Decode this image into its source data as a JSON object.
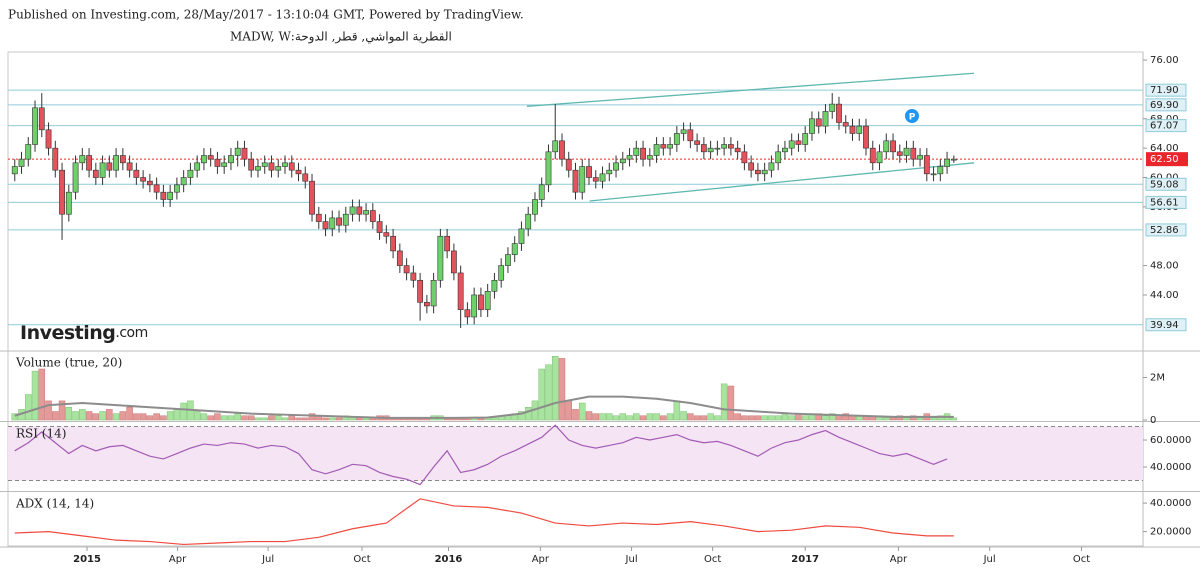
{
  "header": {
    "published": "Published on Investing.com, 28/May/2017 - 13:10:04 GMT, Powered by TradingView.",
    "symbol": "القطرية المواشي, قطر, الدوحة:MADW, W"
  },
  "chart_data": [
    {
      "type": "candlestick",
      "open": [
        60.5,
        61.5,
        62.5,
        64.5,
        69.5,
        66.5,
        64,
        61,
        55,
        58,
        62,
        63,
        61,
        60,
        62,
        61,
        63,
        62,
        61,
        60,
        59.5,
        59,
        58,
        57,
        58,
        59,
        60,
        61,
        62,
        63,
        62.5,
        61.5,
        62,
        63,
        64,
        62.5,
        61,
        61.5,
        62,
        61,
        61.5,
        62,
        61,
        60.5,
        59.5,
        55,
        54,
        53,
        54.5,
        53.5,
        55,
        56,
        55,
        55.5,
        54,
        52.5,
        52,
        50,
        48,
        47,
        46,
        43,
        42.5,
        46,
        52,
        50,
        47,
        42,
        41,
        44,
        42,
        44.5,
        46,
        48,
        49.5,
        51,
        53,
        55,
        57,
        59,
        63.5,
        65,
        62.5,
        61,
        58,
        61.5,
        60,
        59.5,
        60.5,
        61,
        62,
        62.5,
        63,
        64,
        62.5,
        63,
        64.5,
        64,
        64.5,
        66,
        66.5,
        65,
        64.5,
        63.5,
        64,
        64,
        64.5,
        64,
        63.5,
        62,
        61,
        60.5,
        61,
        62,
        63.5,
        64,
        65,
        64.5,
        66,
        68,
        67,
        69,
        70,
        67.5,
        67,
        66,
        67,
        64,
        62,
        63.5,
        65,
        63.5,
        63,
        64,
        62.5,
        63,
        60.5,
        60.5,
        61.5,
        62.5
      ],
      "high": [
        62.5,
        63.5,
        65.5,
        70.5,
        71.5,
        67.5,
        65,
        62,
        59,
        63,
        64,
        64,
        62,
        63,
        63,
        64,
        64,
        63,
        62,
        61,
        60.5,
        60,
        59,
        59,
        60,
        61,
        62,
        63,
        64,
        64,
        63.5,
        63,
        64,
        65,
        65,
        63.5,
        62.5,
        63,
        63,
        62.5,
        63,
        63,
        62,
        61.5,
        60.5,
        56,
        55,
        55.5,
        55.5,
        56,
        57,
        57,
        56.5,
        56.5,
        55,
        53.5,
        53,
        51,
        49,
        48,
        47,
        44,
        47,
        53,
        53,
        51,
        48,
        43,
        45,
        45,
        45.5,
        47,
        49,
        50.5,
        52,
        54,
        56,
        58,
        60,
        64.5,
        70,
        66,
        63.5,
        62,
        62.5,
        62.5,
        61,
        61.5,
        62,
        63,
        63.5,
        64,
        65,
        65,
        64,
        65.5,
        65.5,
        65.5,
        67,
        67.5,
        67.5,
        66,
        65.5,
        65,
        65,
        65.5,
        65.5,
        65,
        64.5,
        63,
        62,
        62,
        63,
        64.5,
        65,
        66,
        66,
        67,
        69,
        69,
        70,
        71.5,
        71,
        68.5,
        68,
        68,
        68,
        65,
        64.5,
        66,
        66,
        64.5,
        65,
        65,
        64,
        64,
        61.5,
        62.5,
        63.5,
        63
      ],
      "low": [
        59.5,
        60.5,
        61.5,
        63.5,
        65.5,
        63,
        60,
        51.5,
        54,
        57,
        61,
        60,
        59,
        59,
        60,
        60,
        61,
        60,
        59,
        58.5,
        58,
        57,
        56,
        56,
        57,
        58,
        59,
        60,
        61,
        61.5,
        60.5,
        60.5,
        61,
        61.5,
        61.5,
        60,
        60,
        60.5,
        60,
        60,
        60.5,
        60,
        59.5,
        58.5,
        54,
        53,
        52,
        52,
        52.5,
        52.5,
        54,
        54,
        54,
        53,
        51.5,
        51,
        49,
        47,
        46,
        45,
        40.5,
        41.5,
        41.5,
        45,
        49,
        46,
        39.5,
        40,
        40,
        41,
        41,
        43.5,
        45,
        47,
        48.5,
        50,
        52,
        54,
        56,
        58,
        62.5,
        61.5,
        60,
        57,
        57,
        59,
        58.5,
        58.5,
        59.5,
        60,
        61,
        61.5,
        62,
        61.5,
        61.5,
        62,
        63,
        63,
        63.5,
        65,
        64,
        63.5,
        62.5,
        62.5,
        63,
        63,
        63,
        62.5,
        61,
        60,
        59.5,
        59.5,
        60,
        61,
        62.5,
        63,
        63.5,
        63.5,
        65,
        66,
        66,
        68,
        66.5,
        66,
        65,
        65,
        63,
        61,
        61,
        62.5,
        62.5,
        62,
        62,
        61.5,
        61.5,
        59.5,
        59.5,
        59.5,
        60.5,
        62
      ],
      "close": [
        61.5,
        62.5,
        64.5,
        69.5,
        66.5,
        64,
        61,
        55,
        58,
        62,
        63,
        61,
        60,
        62,
        61,
        63,
        62,
        61,
        60,
        59.5,
        59,
        58,
        57,
        58,
        59,
        60,
        61,
        62,
        63,
        62.5,
        61.5,
        62,
        63,
        64,
        62.5,
        61,
        61.5,
        62,
        61,
        61.5,
        62,
        61,
        60.5,
        59.5,
        55,
        54,
        53,
        54.5,
        53.5,
        55,
        56,
        55,
        55.5,
        54,
        52.5,
        52,
        50,
        48,
        47,
        46,
        43,
        42.5,
        46,
        52,
        50,
        47,
        42,
        41,
        44,
        42,
        44.5,
        46,
        48,
        49.5,
        51,
        53,
        55,
        57,
        59,
        63.5,
        65,
        62.5,
        61,
        58,
        61.5,
        60,
        59.5,
        60.5,
        61,
        62,
        62.5,
        63,
        64,
        62.5,
        63,
        64.5,
        64,
        64.5,
        66,
        66.5,
        65,
        64.5,
        63.5,
        64,
        64,
        64.5,
        64,
        63.5,
        62,
        61,
        60.5,
        61,
        62,
        63.5,
        64,
        65,
        64.5,
        66,
        68,
        67,
        69,
        70,
        67.5,
        67,
        66,
        67,
        64,
        62,
        63.5,
        65,
        63.5,
        63,
        64,
        62.5,
        63,
        60.5,
        60.5,
        61.5,
        62.5,
        62.5
      ],
      "up_color": "#6fd06a",
      "down_color": "#e2535c",
      "xlim": [
        -1,
        167
      ],
      "xticks": [
        {
          "value": 10.7,
          "label": "2015"
        },
        {
          "value": 24.1,
          "label": "Apr"
        },
        {
          "value": 37.5,
          "label": "Jul"
        },
        {
          "value": 51.4,
          "label": "Oct"
        },
        {
          "value": 64.2,
          "label": "2016"
        },
        {
          "value": 77.8,
          "label": "Apr"
        },
        {
          "value": 91.3,
          "label": "Jul"
        },
        {
          "value": 103.3,
          "label": "Oct"
        },
        {
          "value": 117,
          "label": "2017"
        },
        {
          "value": 130.8,
          "label": "Apr"
        },
        {
          "value": 144.3,
          "label": "Jul"
        },
        {
          "value": 157.9,
          "label": "Oct"
        }
      ],
      "ylim": [
        36.5,
        77.1
      ],
      "yticks": [
        {
          "value": 76,
          "label": "76.00"
        },
        {
          "value": 68,
          "label": "68.00"
        },
        {
          "value": 64,
          "label": "64.00"
        },
        {
          "value": 60,
          "label": "60.00"
        },
        {
          "value": 56,
          "label": "56.00"
        },
        {
          "value": 48,
          "label": "48.00"
        },
        {
          "value": 44,
          "label": "44.00"
        }
      ],
      "levels": [
        {
          "value": 71.9,
          "label": "71.90"
        },
        {
          "value": 69.9,
          "label": "69.90"
        },
        {
          "value": 67.07,
          "label": "67.07"
        },
        {
          "value": 59.08,
          "label": "59.08"
        },
        {
          "value": 56.61,
          "label": "56.61"
        },
        {
          "value": 52.86,
          "label": "52.86"
        },
        {
          "value": 39.94,
          "label": "39.94"
        }
      ],
      "level_color": "#8fcbd9",
      "last": {
        "value": 62.5,
        "label": "62.50"
      },
      "last_color": "#e8262b",
      "trendlines": [
        {
          "x": [
            75.8,
            142
          ],
          "y": [
            69.7,
            74.2
          ]
        },
        {
          "x": [
            85.1,
            142
          ],
          "y": [
            56.8,
            62.0
          ]
        }
      ],
      "trend_color": "#5fb8b0",
      "logo": {
        "name": "Investing",
        "suffix": ".com"
      }
    },
    {
      "type": "bar",
      "title": "Volume (true, 20)",
      "values": [
        0.3,
        0.5,
        1.2,
        2.3,
        2.4,
        0.9,
        0.4,
        0.9,
        0.6,
        0.4,
        0.5,
        0.4,
        0.3,
        0.4,
        0.5,
        0.3,
        0.4,
        0.6,
        0.3,
        0.3,
        0.2,
        0.3,
        0.2,
        0.4,
        0.5,
        0.8,
        0.9,
        0.4,
        0.3,
        0.2,
        0.3,
        0.2,
        0.2,
        0.3,
        0.2,
        0.2,
        0.1,
        0.1,
        0.2,
        0.2,
        0.1,
        0.2,
        0.1,
        0.1,
        0.3,
        0.2,
        0.1,
        0.1,
        0.1,
        0.2,
        0.1,
        0.1,
        0.1,
        0.1,
        0.2,
        0.2,
        0.1,
        0.1,
        0.1,
        0.1,
        0.1,
        0.1,
        0.2,
        0.2,
        0.1,
        0.1,
        0.1,
        0.1,
        0.1,
        0.1,
        0.1,
        0.1,
        0.2,
        0.2,
        0.3,
        0.4,
        0.6,
        0.9,
        2.4,
        2.6,
        3.0,
        2.9,
        0.9,
        0.5,
        0.8,
        0.4,
        0.3,
        0.3,
        0.3,
        0.2,
        0.3,
        0.2,
        0.3,
        0.2,
        0.3,
        0.3,
        0.2,
        0.3,
        0.9,
        0.4,
        0.3,
        0.2,
        0.2,
        0.3,
        0.2,
        1.7,
        1.6,
        0.3,
        0.2,
        0.2,
        0.2,
        0.2,
        0.2,
        0.2,
        0.3,
        0.2,
        0.3,
        0.2,
        0.3,
        0.3,
        0.2,
        0.3,
        0.2,
        0.3,
        0.2,
        0.2,
        0.2,
        0.2,
        0.2,
        0.1,
        0.1,
        0.2,
        0.1,
        0.2,
        0.1,
        0.3,
        0.1,
        0.2,
        0.3,
        0.1
      ],
      "up_color": "#a9e3a0",
      "down_color": "#e59a9a",
      "ylim": [
        0,
        3.2
      ],
      "yticks": [
        {
          "value": 2,
          "label": "2M"
        },
        0
      ],
      "ma": {
        "x": [
          0,
          5,
          10,
          15,
          20,
          25,
          30,
          35,
          40,
          45,
          50,
          55,
          60,
          65,
          70,
          75,
          80,
          85,
          90,
          95,
          100,
          105,
          110,
          115,
          120,
          125,
          130,
          135,
          139
        ],
        "values": [
          0.2,
          0.7,
          0.8,
          0.7,
          0.6,
          0.5,
          0.4,
          0.3,
          0.25,
          0.2,
          0.15,
          0.1,
          0.1,
          0.1,
          0.12,
          0.3,
          0.8,
          1.1,
          1.1,
          1.0,
          0.8,
          0.5,
          0.4,
          0.3,
          0.25,
          0.2,
          0.15,
          0.15,
          0.15
        ],
        "color": "#8c8c8c"
      }
    },
    {
      "type": "line",
      "title": "RSI (14)",
      "x": [
        0,
        2,
        4,
        6,
        8,
        10,
        12,
        14,
        16,
        18,
        20,
        22,
        24,
        26,
        28,
        30,
        32,
        34,
        36,
        38,
        40,
        42,
        44,
        46,
        48,
        50,
        52,
        54,
        56,
        58,
        60,
        62,
        64,
        66,
        68,
        70,
        72,
        74,
        76,
        78,
        80,
        82,
        84,
        86,
        88,
        90,
        92,
        94,
        96,
        98,
        100,
        102,
        104,
        106,
        108,
        110,
        112,
        114,
        116,
        118,
        120,
        122,
        124,
        126,
        128,
        130,
        132,
        134,
        136,
        138
      ],
      "values": [
        52,
        58,
        66,
        58,
        50,
        56,
        52,
        55,
        56,
        52,
        48,
        46,
        50,
        54,
        57,
        56,
        58,
        57,
        54,
        56,
        55,
        50,
        38,
        35,
        38,
        42,
        41,
        36,
        33,
        31,
        27,
        40,
        52,
        36,
        38,
        42,
        48,
        52,
        57,
        62,
        71,
        60,
        56,
        54,
        56,
        58,
        62,
        60,
        62,
        64,
        60,
        58,
        59,
        56,
        52,
        48,
        54,
        58,
        60,
        64,
        67,
        62,
        58,
        54,
        50,
        48,
        50,
        46,
        42,
        46
      ],
      "color": "#a35bb5",
      "ylim": [
        23,
        72.6
      ],
      "yticks": [
        {
          "value": 60,
          "label": "60.0000"
        },
        {
          "value": 40,
          "label": "40.0000"
        }
      ],
      "band": [
        30,
        70
      ],
      "band_color": "#f4e4f4"
    },
    {
      "type": "line",
      "title": "ADX (14, 14)",
      "x": [
        0,
        5,
        10,
        15,
        20,
        25,
        30,
        35,
        40,
        45,
        50,
        55,
        60,
        65,
        70,
        75,
        80,
        85,
        90,
        95,
        100,
        105,
        110,
        115,
        120,
        125,
        130,
        135,
        139
      ],
      "values": [
        19,
        20,
        17,
        14,
        13,
        11,
        12,
        13,
        13,
        16,
        22,
        26,
        43,
        38,
        37,
        33,
        26,
        24,
        26,
        25,
        27,
        24,
        20,
        21,
        24,
        23,
        19,
        17,
        17
      ],
      "color": "#f04a3e",
      "ylim": [
        9.9,
        47.1
      ],
      "yticks": [
        {
          "value": 40,
          "label": "40.0000"
        },
        {
          "value": 20,
          "label": "20.0000"
        }
      ]
    }
  ]
}
